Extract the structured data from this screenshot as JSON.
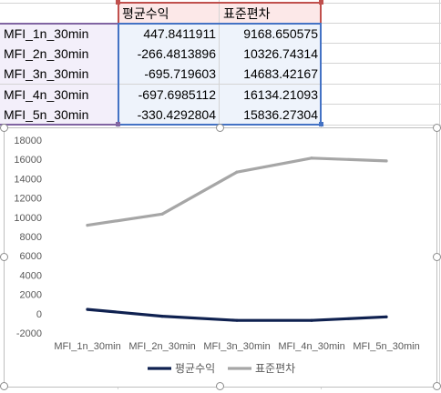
{
  "sheet": {
    "headers": [
      "평균수익",
      "표준편차"
    ],
    "rows": [
      {
        "label": "MFI_1n_30min",
        "mean": "447.8411911",
        "std": "9168.650575"
      },
      {
        "label": "MFI_2n_30min",
        "mean": "-266.4813896",
        "std": "10326.74314"
      },
      {
        "label": "MFI_3n_30min",
        "mean": "-695.719603",
        "std": "14683.42167"
      },
      {
        "label": "MFI_4n_30min",
        "mean": "-697.6985112",
        "std": "16134.21093"
      },
      {
        "label": "MFI_5n_30min",
        "mean": "-330.4292804",
        "std": "15836.27304"
      }
    ]
  },
  "chart_data": {
    "type": "line",
    "categories": [
      "MFI_1n_30min",
      "MFI_2n_30min",
      "MFI_3n_30min",
      "MFI_4n_30min",
      "MFI_5n_30min"
    ],
    "series": [
      {
        "name": "평균수익",
        "color": "#0f2150",
        "values": [
          447.8411911,
          -266.4813896,
          -695.719603,
          -697.6985112,
          -330.4292804
        ]
      },
      {
        "name": "표준편차",
        "color": "#a6a6a6",
        "values": [
          9168.650575,
          10326.74314,
          14683.42167,
          16134.21093,
          15836.27304
        ]
      }
    ],
    "ylim": [
      -2000,
      18000
    ],
    "yticks": [
      "18000",
      "16000",
      "14000",
      "12000",
      "10000",
      "8000",
      "6000",
      "4000",
      "2000",
      "0",
      "-2000"
    ],
    "grid": false,
    "legend": "bottom"
  }
}
